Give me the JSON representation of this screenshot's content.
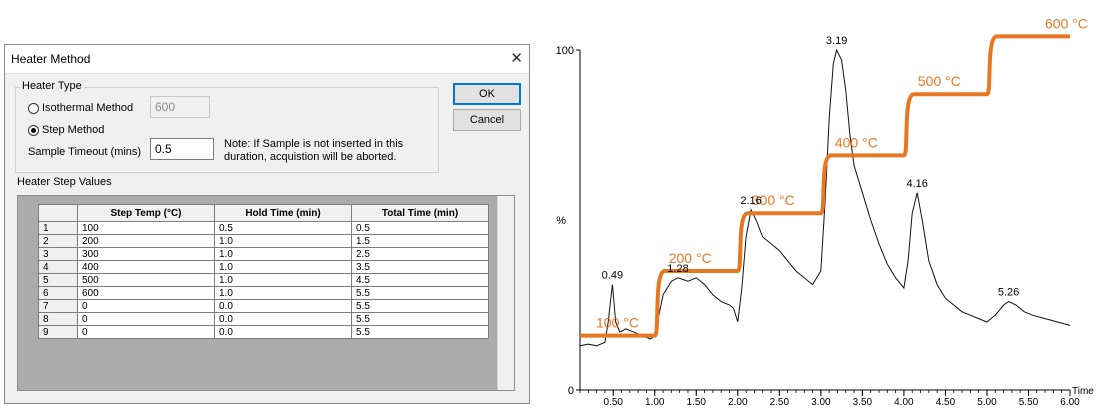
{
  "dialog": {
    "title": "Heater Method",
    "heater_type": {
      "label": "Heater Type",
      "isothermal_label": "Isothermal Method",
      "isothermal_value": "600",
      "step_label": "Step Method",
      "step_selected": true
    },
    "sample_timeout": {
      "label": "Sample Timeout (mins)",
      "value": "0.5",
      "note_line1": "Note: If Sample is not inserted in this",
      "note_line2": "duration, acquistion will be aborted."
    },
    "buttons": {
      "ok": "OK",
      "cancel": "Cancel"
    },
    "step_values": {
      "label": "Heater Step Values",
      "columns": [
        "Step Temp (°C)",
        "Hold Time (min)",
        "Total Time (min)"
      ],
      "rows": [
        {
          "n": "1",
          "temp": "100",
          "hold": "0.5",
          "total": "0.5"
        },
        {
          "n": "2",
          "temp": "200",
          "hold": "1.0",
          "total": "1.5"
        },
        {
          "n": "3",
          "temp": "300",
          "hold": "1.0",
          "total": "2.5"
        },
        {
          "n": "4",
          "temp": "400",
          "hold": "1.0",
          "total": "3.5"
        },
        {
          "n": "5",
          "temp": "500",
          "hold": "1.0",
          "total": "4.5"
        },
        {
          "n": "6",
          "temp": "600",
          "hold": "1.0",
          "total": "5.5"
        },
        {
          "n": "7",
          "temp": "0",
          "hold": "0.0",
          "total": "5.5"
        },
        {
          "n": "8",
          "temp": "0",
          "hold": "0.0",
          "total": "5.5"
        },
        {
          "n": "9",
          "temp": "0",
          "hold": "0.0",
          "total": "5.5"
        }
      ]
    }
  },
  "chart_data": {
    "type": "line",
    "ylabel": "%",
    "xlabel": "Time",
    "ylim": [
      0,
      100
    ],
    "xlim": [
      0.1,
      6.0
    ],
    "yticks": [
      0,
      100
    ],
    "xticks": [
      "0.50",
      "1.00",
      "1.50",
      "2.00",
      "2.50",
      "3.00",
      "3.50",
      "4.00",
      "4.50",
      "5.00",
      "5.50",
      "6.00"
    ],
    "accent_color": "#e87722",
    "signal": [
      [
        0.1,
        13
      ],
      [
        0.2,
        13.5
      ],
      [
        0.3,
        13
      ],
      [
        0.4,
        14
      ],
      [
        0.44,
        20
      ],
      [
        0.49,
        31
      ],
      [
        0.53,
        20
      ],
      [
        0.58,
        17
      ],
      [
        0.65,
        18
      ],
      [
        0.75,
        17
      ],
      [
        0.85,
        16
      ],
      [
        0.95,
        15
      ],
      [
        1.0,
        16
      ],
      [
        1.05,
        22
      ],
      [
        1.1,
        28
      ],
      [
        1.2,
        32
      ],
      [
        1.28,
        33
      ],
      [
        1.4,
        32
      ],
      [
        1.5,
        33
      ],
      [
        1.6,
        31
      ],
      [
        1.7,
        28
      ],
      [
        1.8,
        26
      ],
      [
        1.9,
        25
      ],
      [
        1.95,
        24
      ],
      [
        2.0,
        20
      ],
      [
        2.05,
        30
      ],
      [
        2.1,
        45
      ],
      [
        2.16,
        53
      ],
      [
        2.22,
        50
      ],
      [
        2.3,
        45
      ],
      [
        2.4,
        43
      ],
      [
        2.5,
        41
      ],
      [
        2.6,
        38
      ],
      [
        2.7,
        35
      ],
      [
        2.8,
        33
      ],
      [
        2.9,
        31
      ],
      [
        3.0,
        35
      ],
      [
        3.05,
        55
      ],
      [
        3.1,
        80
      ],
      [
        3.15,
        96
      ],
      [
        3.19,
        100
      ],
      [
        3.25,
        97
      ],
      [
        3.3,
        88
      ],
      [
        3.35,
        75
      ],
      [
        3.4,
        66
      ],
      [
        3.5,
        58
      ],
      [
        3.6,
        50
      ],
      [
        3.7,
        43
      ],
      [
        3.8,
        37
      ],
      [
        3.9,
        33
      ],
      [
        4.0,
        30
      ],
      [
        4.05,
        38
      ],
      [
        4.1,
        52
      ],
      [
        4.16,
        58
      ],
      [
        4.22,
        50
      ],
      [
        4.3,
        38
      ],
      [
        4.4,
        31
      ],
      [
        4.5,
        27
      ],
      [
        4.6,
        25
      ],
      [
        4.7,
        23
      ],
      [
        4.8,
        22
      ],
      [
        4.9,
        21
      ],
      [
        5.0,
        20
      ],
      [
        5.1,
        22
      ],
      [
        5.2,
        25
      ],
      [
        5.26,
        26
      ],
      [
        5.35,
        25
      ],
      [
        5.45,
        23
      ],
      [
        5.55,
        22
      ],
      [
        5.7,
        21
      ],
      [
        5.85,
        20
      ],
      [
        6.0,
        19
      ]
    ],
    "peak_labels": [
      {
        "x": 0.49,
        "y": 31,
        "text": "0.49"
      },
      {
        "x": 1.28,
        "y": 33,
        "text": "1.28"
      },
      {
        "x": 2.16,
        "y": 53,
        "text": "2.16"
      },
      {
        "x": 3.19,
        "y": 100,
        "text": "3.19"
      },
      {
        "x": 4.16,
        "y": 58,
        "text": "4.16"
      },
      {
        "x": 5.26,
        "y": 26,
        "text": "5.26"
      }
    ],
    "temperature_steps": [
      {
        "x_start": 0.1,
        "x_end": 1.0,
        "label": "100 °C"
      },
      {
        "x_start": 1.0,
        "x_end": 2.0,
        "label": "200 °C"
      },
      {
        "x_start": 2.0,
        "x_end": 3.0,
        "label": "300 °C"
      },
      {
        "x_start": 3.0,
        "x_end": 4.0,
        "label": "400 °C"
      },
      {
        "x_start": 4.0,
        "x_end": 5.0,
        "label": "500 °C"
      },
      {
        "x_start": 5.0,
        "x_end": 6.0,
        "label": "600 °C"
      }
    ]
  }
}
